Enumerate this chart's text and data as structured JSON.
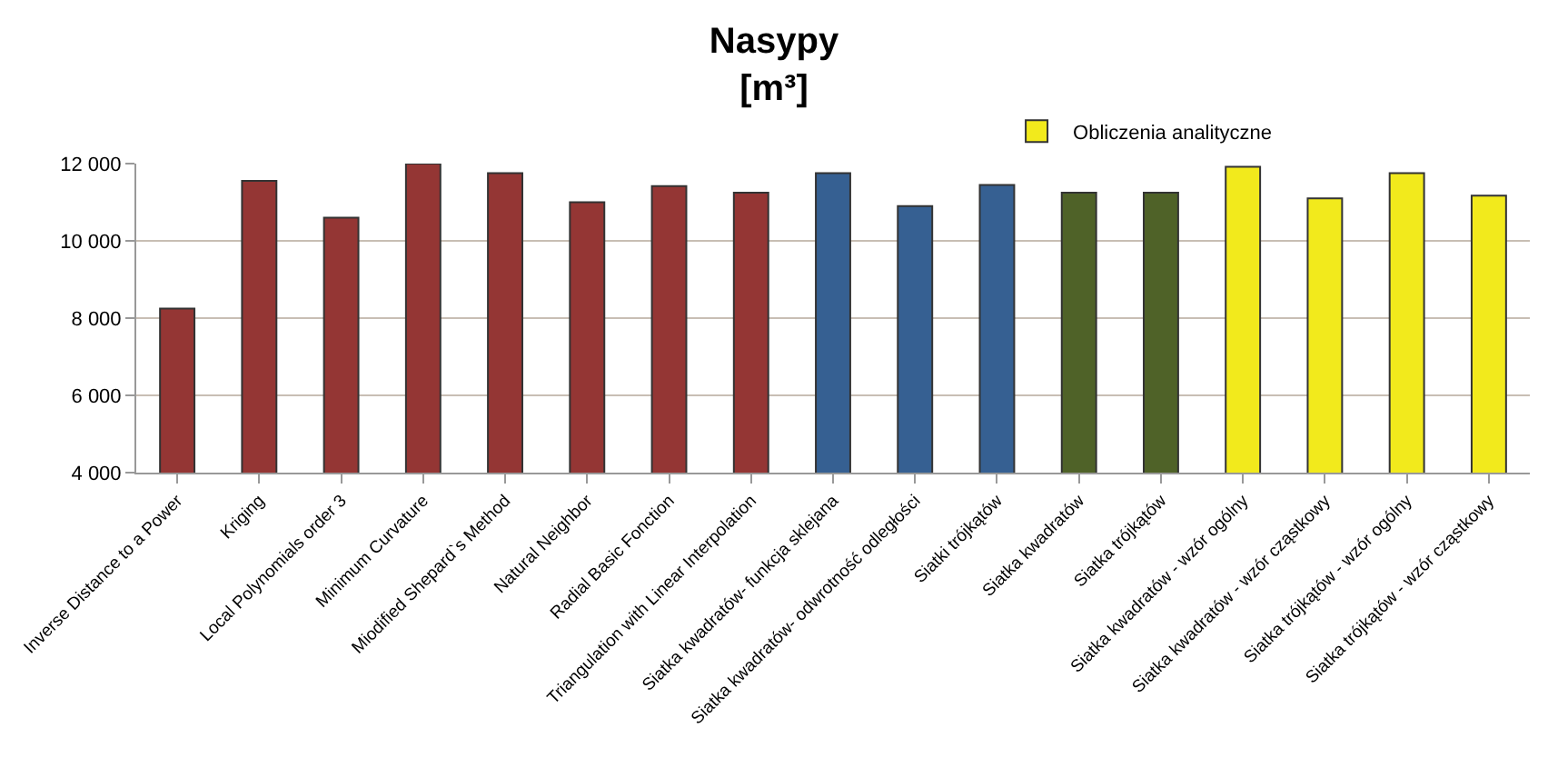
{
  "chart_data": {
    "type": "bar",
    "title": "Nasypy\n[m³]",
    "categories": [
      "Inverse Distance to a Power",
      "Kriging",
      "Local Polynomials order 3",
      "Minimum Curvature",
      "Miodified Shepard`s Method",
      "Natural Neighbor",
      "Radial Basic Fonction",
      "Triangulation with Linear Interpolation",
      "Siatka kwadratów- funkcja sklejana",
      "Siatka kwadratów- odwrotność odległości",
      "Siatki trójkątów",
      "Siatka kwadratów",
      "Siatka trójkątów",
      "Siatka kwadratów - wzór ogólny",
      "Siatka kwadratów - wzór cząstkowy",
      "Siatka trójkątów - wzór ogólny",
      "Siatka trójkątów - wzór cząstkowy"
    ],
    "series": [
      {
        "color": "#943634",
        "values": [
          8250,
          11550,
          10600,
          12000,
          11750,
          11000,
          11420,
          11250,
          null,
          null,
          null,
          null,
          null,
          null,
          null,
          null,
          null
        ]
      },
      {
        "color": "#366092",
        "values": [
          null,
          null,
          null,
          null,
          null,
          null,
          null,
          null,
          11750,
          10900,
          11450,
          null,
          null,
          null,
          null,
          null,
          null
        ]
      },
      {
        "color": "#4f6228",
        "values": [
          null,
          null,
          null,
          null,
          null,
          null,
          null,
          null,
          null,
          null,
          null,
          11250,
          11250,
          null,
          null,
          null,
          null
        ]
      },
      {
        "name": "Obliczenia analityczne",
        "color": "#f2ea1c",
        "values": [
          null,
          null,
          null,
          null,
          null,
          null,
          null,
          null,
          null,
          null,
          null,
          null,
          null,
          11920,
          11100,
          11750,
          11170
        ]
      }
    ],
    "ylim": [
      4000,
      12000
    ],
    "yticks": [
      {
        "value": 4000,
        "label": "4 000"
      },
      {
        "value": 6000,
        "label": "6 000"
      },
      {
        "value": 8000,
        "label": "8 000"
      },
      {
        "value": 10000,
        "label": "10 000"
      },
      {
        "value": 12000,
        "label": "12 000"
      }
    ],
    "grid": "y",
    "legend": "top right"
  }
}
